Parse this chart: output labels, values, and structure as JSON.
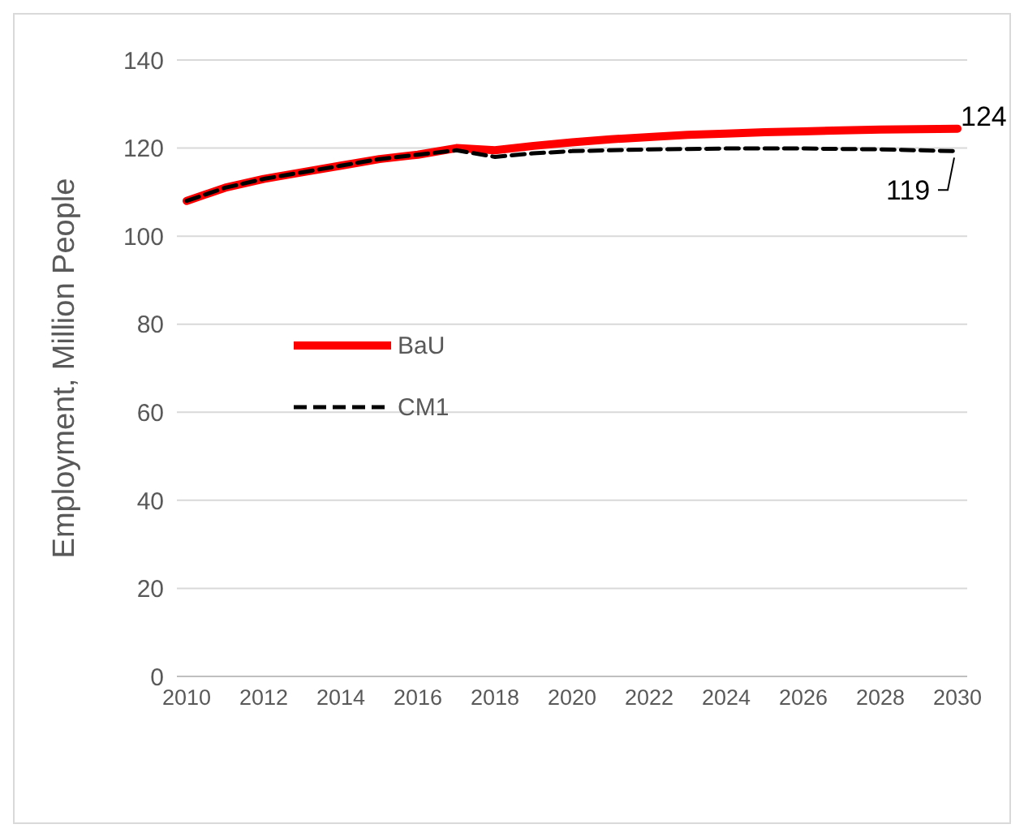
{
  "chart_data": {
    "type": "line",
    "ylabel": "Employment, Million People",
    "categories": [
      "2010",
      null,
      "2012",
      null,
      "2014",
      null,
      "2016",
      null,
      "2018",
      null,
      "2020",
      null,
      "2022",
      null,
      "2024",
      null,
      "2026",
      null,
      "2028",
      null,
      "2030"
    ],
    "series": [
      {
        "name": "BaU",
        "color": "#ff0000",
        "line_style": "solid",
        "values": [
          108,
          111,
          113,
          114.5,
          116,
          117.5,
          118.5,
          120,
          119.5,
          120.5,
          121.3,
          122,
          122.5,
          123,
          123.3,
          123.6,
          123.8,
          124,
          124.2,
          124.3,
          124.4
        ],
        "value_labels": [
          null,
          null,
          null,
          null,
          null,
          null,
          null,
          null,
          null,
          null,
          null,
          null,
          null,
          null,
          null,
          null,
          null,
          null,
          null,
          null,
          "124"
        ]
      },
      {
        "name": "CM1",
        "color": "#000000",
        "line_style": "dashed",
        "values": [
          108,
          111,
          113,
          114.5,
          116,
          117.5,
          118.5,
          119.5,
          118,
          118.8,
          119.3,
          119.5,
          119.7,
          119.8,
          119.9,
          119.9,
          119.9,
          119.8,
          119.7,
          119.5,
          119.3
        ],
        "value_labels": [
          null,
          null,
          null,
          null,
          null,
          null,
          null,
          null,
          null,
          null,
          null,
          null,
          null,
          null,
          null,
          null,
          null,
          null,
          null,
          null,
          "119"
        ]
      }
    ],
    "ylim": [
      0,
      140
    ],
    "yticks": [
      0,
      20,
      40,
      60,
      80,
      100,
      120,
      140
    ],
    "grid": "y",
    "legend": "left",
    "marker": "none"
  }
}
